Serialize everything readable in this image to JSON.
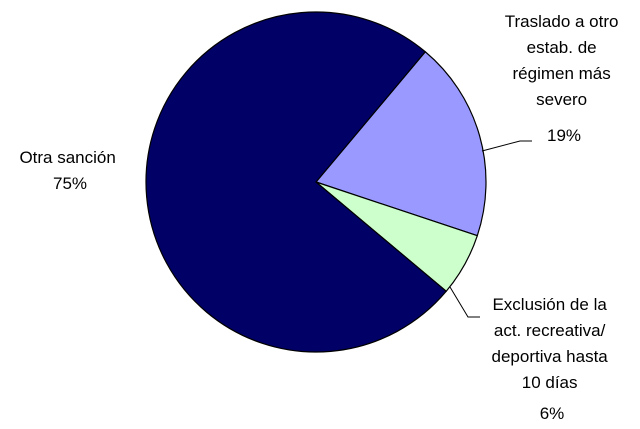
{
  "chart_data": {
    "type": "pie",
    "title": "",
    "slices": [
      {
        "label_lines": [
          "Otra sanción"
        ],
        "value": 75,
        "value_label": "75%",
        "color": "#000066"
      },
      {
        "label_lines": [
          "Traslado a otro",
          "estab. de",
          "régimen más",
          "severo"
        ],
        "value": 19,
        "value_label": "19%",
        "color": "#9999ff"
      },
      {
        "label_lines": [
          "Exclusión de la",
          "act. recreativa/",
          "deportiva hasta",
          "10 días"
        ],
        "value": 6,
        "value_label": "6%",
        "color": "#ccffcc"
      }
    ],
    "start_angle_deg": -50,
    "direction": "clockwise",
    "edge_color": "#000000"
  }
}
